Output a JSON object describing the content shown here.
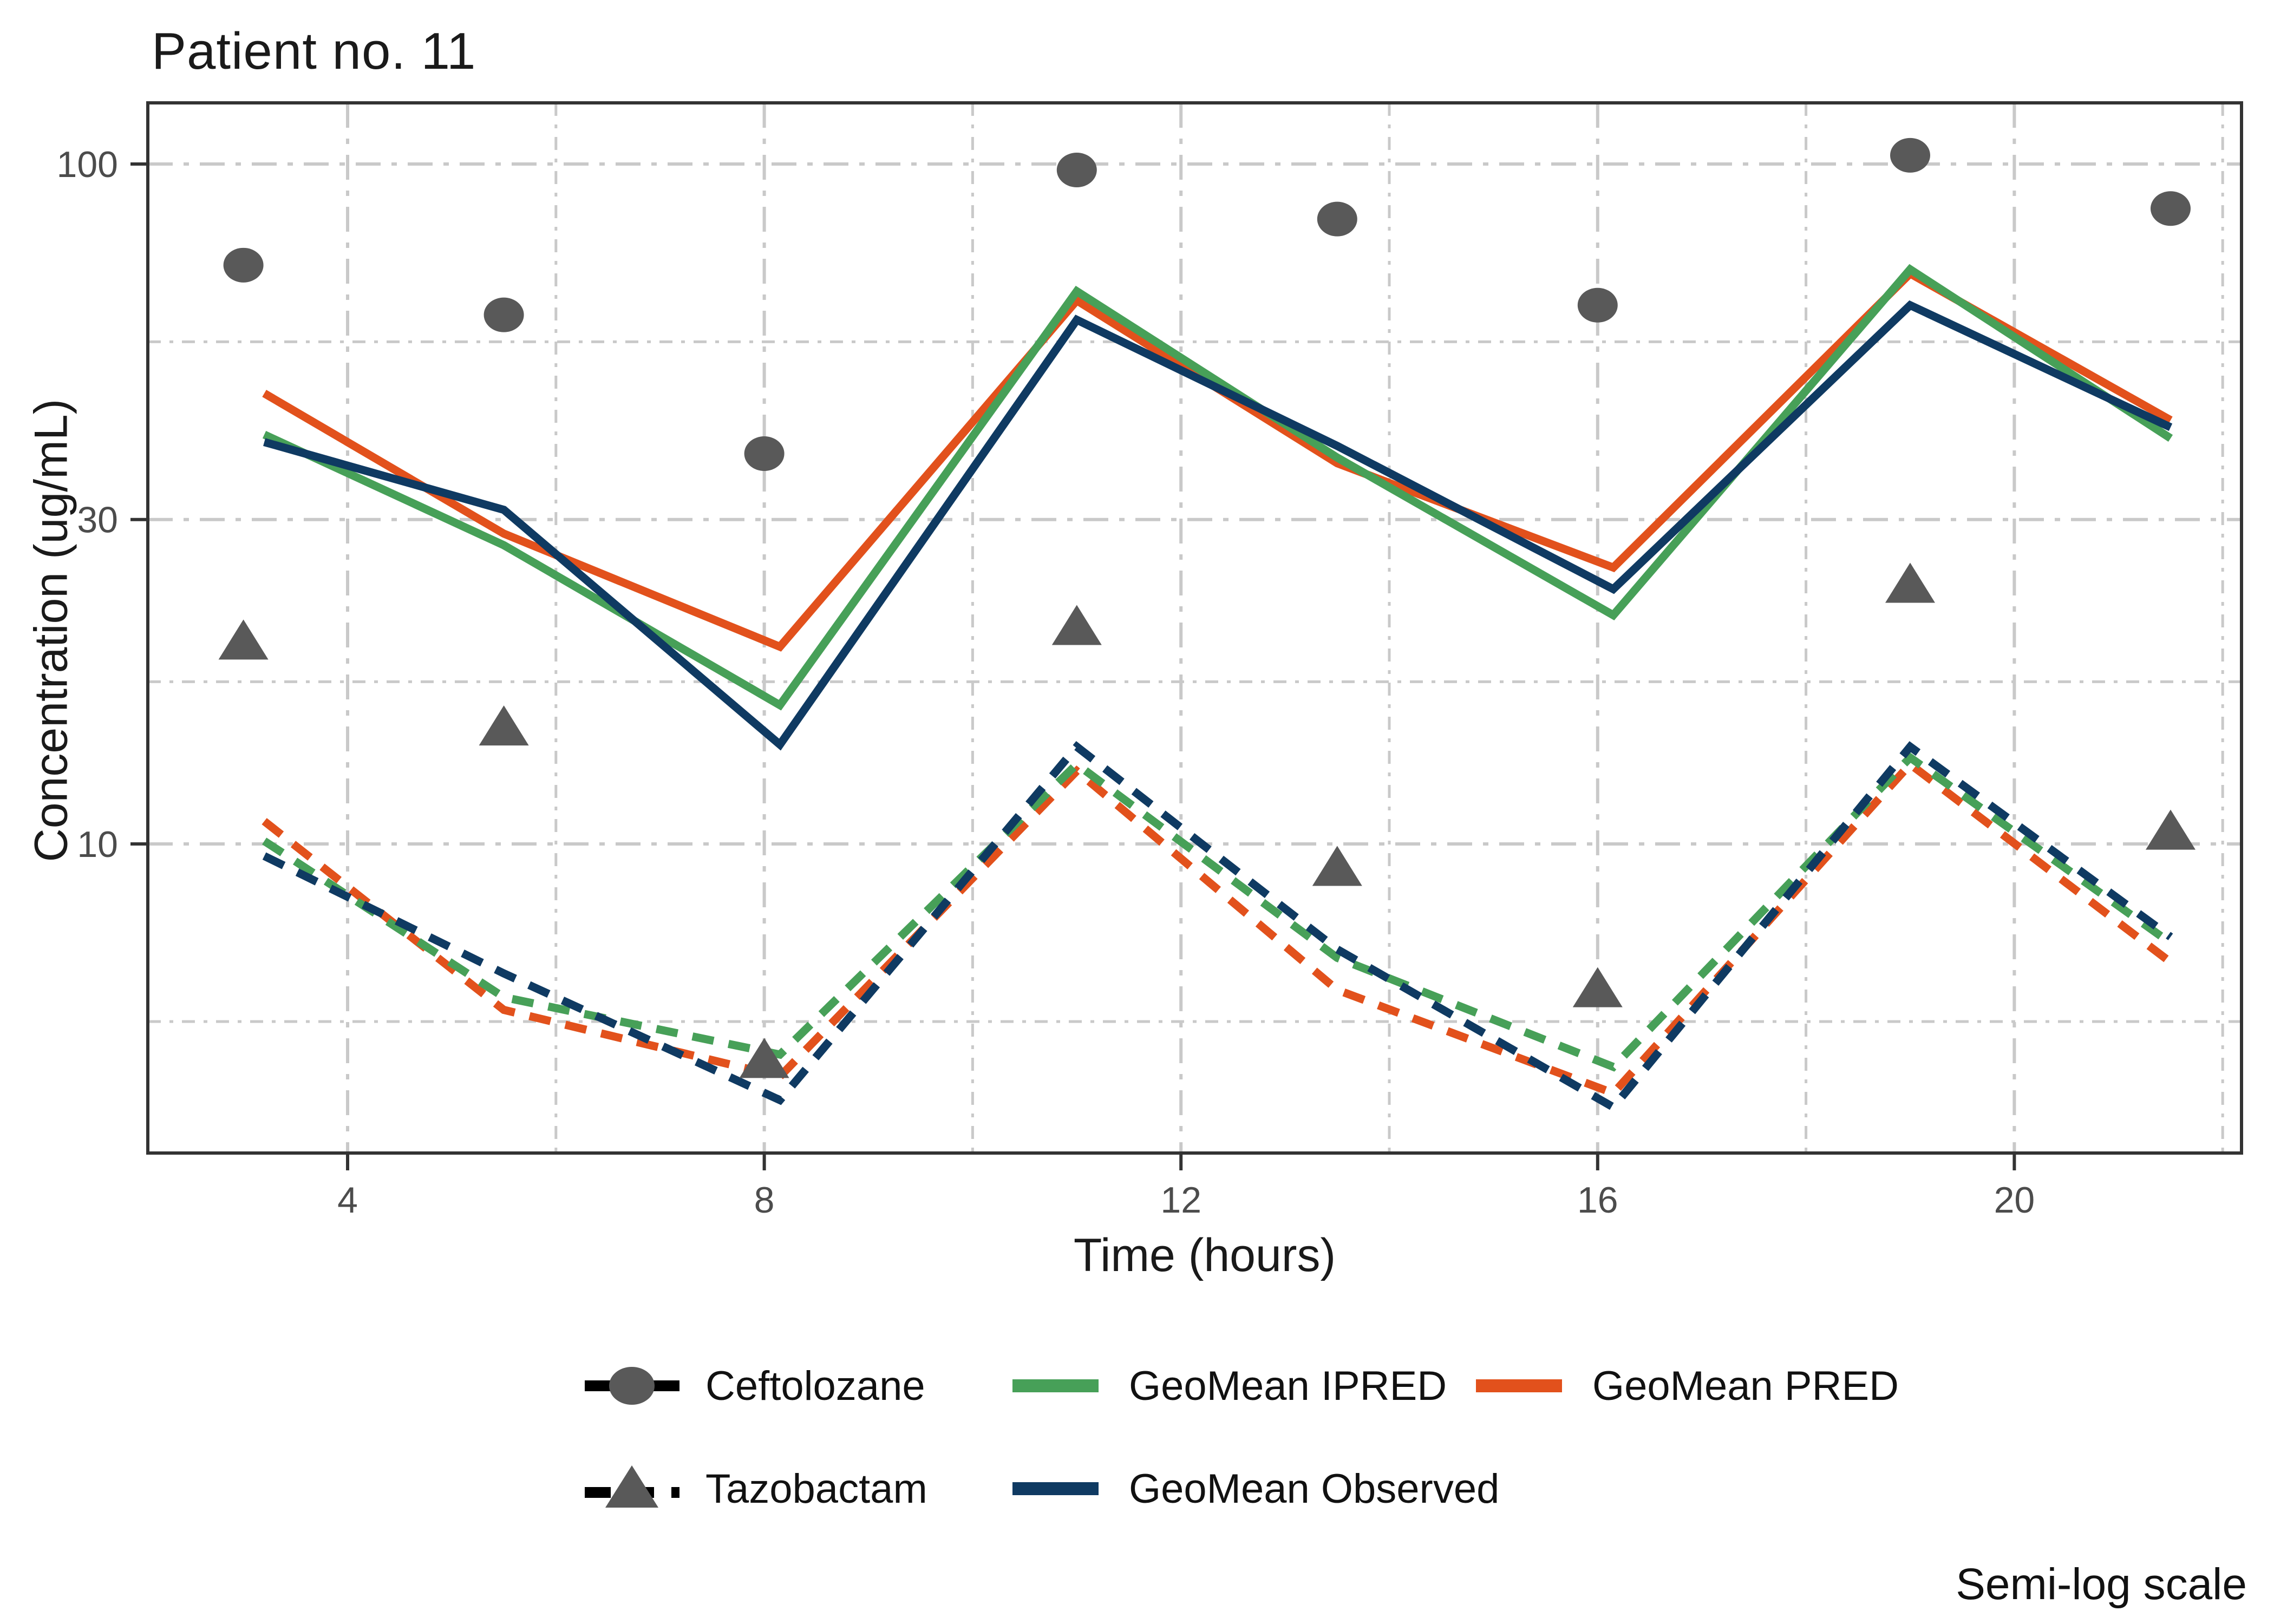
{
  "title": "Patient no. 11",
  "note": "Semi-log scale",
  "colors": {
    "ipred_green": "#47a058",
    "pred_orange": "#e2511c",
    "observed_navy": "#0f3a62",
    "point_gray": "#595959",
    "grid_gray": "#c9c9c9",
    "axis_dark": "#333333",
    "tick_label": "#4c4c4c"
  },
  "legend": {
    "items": [
      {
        "label": "Ceftolozane",
        "key": "black-solid-line-gray-circle"
      },
      {
        "label": "GeoMean IPRED",
        "key": "green-solid-line"
      },
      {
        "label": "GeoMean PRED",
        "key": "orange-solid-line"
      },
      {
        "label": "Tazobactam",
        "key": "black-dashed-line-gray-triangle"
      },
      {
        "label": "GeoMean Observed",
        "key": "navy-solid-line"
      }
    ]
  },
  "chart_data": {
    "type": "line",
    "title": "Patient no. 11",
    "xlabel": "Time (hours)",
    "ylabel": "Concentration (ug/mL)",
    "note": "Semi-log scale",
    "grid": "dash-dot gray, major and minor",
    "legend_position": "bottom",
    "x_axis": {
      "ticks": [
        4,
        8,
        12,
        16,
        20
      ],
      "tick_labels": [
        "4",
        "8",
        "12",
        "16",
        "20"
      ],
      "minor_ticks": [
        6,
        10,
        14,
        18,
        22
      ],
      "range": [
        2.08,
        22.18
      ]
    },
    "y_axis": {
      "scale": "log10",
      "ticks": [
        100,
        30,
        10
      ],
      "tick_labels": [
        "100",
        "30",
        "10"
      ],
      "minor_gridlines": [
        54.77,
        17.32,
        5.48
      ],
      "range": [
        3.5,
        123
      ]
    },
    "series": [
      {
        "name": "GeoMean PRED (Ceftolozane)",
        "drug": "Ceftolozane",
        "style": "solid",
        "color": "#e2511c",
        "x": [
          3.2,
          5.5,
          8.15,
          11,
          13.5,
          16.15,
          19,
          21.5
        ],
        "y": [
          46,
          28.6,
          19.5,
          63,
          36.3,
          25.5,
          69,
          42
        ]
      },
      {
        "name": "GeoMean IPRED (Ceftolozane)",
        "drug": "Ceftolozane",
        "style": "solid",
        "color": "#47a058",
        "x": [
          3.2,
          5.5,
          8.15,
          11,
          13.5,
          16.15,
          19,
          21.5
        ],
        "y": [
          40,
          27.5,
          16,
          65,
          37,
          21.7,
          70,
          39.5
        ]
      },
      {
        "name": "GeoMean Observed (Ceftolozane)",
        "drug": "Ceftolozane",
        "style": "solid",
        "color": "#0f3a62",
        "x": [
          3.2,
          5.5,
          8.15,
          11,
          13.5,
          16.15,
          19,
          21.5
        ],
        "y": [
          39,
          31,
          14,
          59,
          38.5,
          23.7,
          62,
          41
        ]
      },
      {
        "name": "GeoMean PRED (Tazobactam)",
        "drug": "Tazobactam",
        "style": "dashed",
        "color": "#e2511c",
        "x": [
          3.2,
          5.5,
          8.15,
          11,
          13.5,
          16.15,
          19,
          21.5
        ],
        "y": [
          10.8,
          5.7,
          4.55,
          12.8,
          6.1,
          4.3,
          13.1,
          6.7
        ]
      },
      {
        "name": "GeoMean IPRED (Tazobactam)",
        "drug": "Tazobactam",
        "style": "dashed",
        "color": "#47a058",
        "x": [
          3.2,
          5.5,
          8.15,
          11,
          13.5,
          16.15,
          19,
          21.5
        ],
        "y": [
          10.1,
          5.95,
          4.9,
          13.1,
          6.8,
          4.7,
          13.4,
          7.15
        ]
      },
      {
        "name": "GeoMean Observed (Tazobactam)",
        "drug": "Tazobactam",
        "style": "dashed",
        "color": "#0f3a62",
        "x": [
          3.2,
          5.5,
          8.15,
          11,
          13.5,
          16.15,
          19,
          21.5
        ],
        "y": [
          9.6,
          6.45,
          4.2,
          13.9,
          7.0,
          4.1,
          13.9,
          7.3
        ]
      }
    ],
    "points": [
      {
        "name": "Ceftolozane observed",
        "marker": "circle",
        "color": "#595959",
        "x": [
          3,
          5.5,
          8,
          11,
          13.5,
          16,
          19,
          21.5
        ],
        "y": [
          71,
          60,
          37.5,
          98,
          83,
          62,
          103,
          86
        ]
      },
      {
        "name": "Tazobactam observed",
        "marker": "triangle",
        "color": "#595959",
        "x": [
          3,
          5.5,
          8,
          11,
          13.5,
          16,
          19,
          21.5
        ],
        "y": [
          19.8,
          14.8,
          4.8,
          20.8,
          9.2,
          6.1,
          24,
          10.4
        ]
      }
    ]
  }
}
